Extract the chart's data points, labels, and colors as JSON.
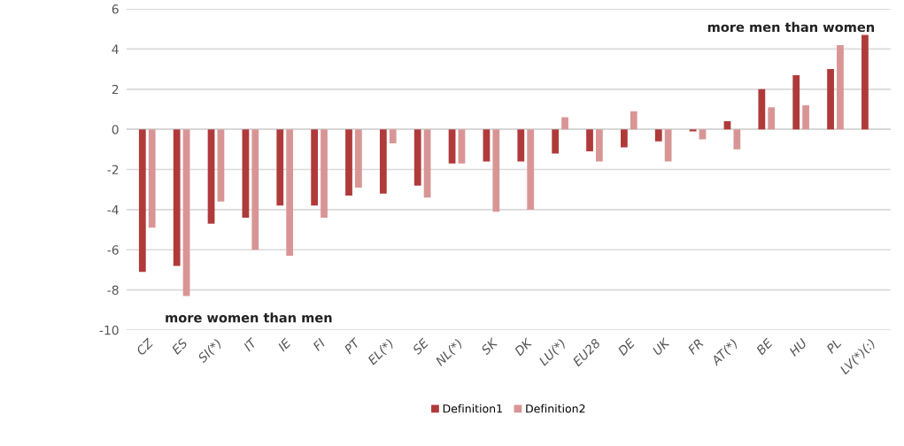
{
  "chart_data": {
    "type": "bar",
    "categories": [
      "CZ",
      "ES",
      "SI(*)",
      "IT",
      "IE",
      "FI",
      "PT",
      "EL(*)",
      "SE",
      "NL(*)",
      "SK",
      "DK",
      "LU(*)",
      "EU28",
      "DE",
      "UK",
      "FR",
      "AT(*)",
      "BE",
      "HU",
      "PL",
      "LV(*)(:)"
    ],
    "series": [
      {
        "name": "Definition1",
        "color": "#b03a3a",
        "values": [
          -7.1,
          -6.8,
          -4.7,
          -4.4,
          -3.8,
          -3.8,
          -3.3,
          -3.2,
          -2.8,
          -1.7,
          -1.6,
          -1.6,
          -1.2,
          -1.1,
          -0.9,
          -0.6,
          -0.1,
          0.4,
          2.0,
          2.7,
          3.0,
          4.7
        ]
      },
      {
        "name": "Definition2",
        "color": "#d99595",
        "values": [
          -4.9,
          -8.3,
          -3.6,
          -6.0,
          -6.3,
          -4.4,
          -2.9,
          -0.7,
          -3.4,
          -1.7,
          -4.1,
          -4.0,
          0.6,
          -1.6,
          0.9,
          -1.6,
          -0.5,
          -1.0,
          1.1,
          1.2,
          4.2,
          null
        ]
      }
    ],
    "ylim": [
      -10,
      6
    ],
    "yticks": [
      -10,
      -8,
      -6,
      -4,
      -2,
      0,
      2,
      4,
      6
    ],
    "annotations": [
      "more men than women",
      "more women than men"
    ],
    "grid": "y",
    "legend": "bottom"
  }
}
